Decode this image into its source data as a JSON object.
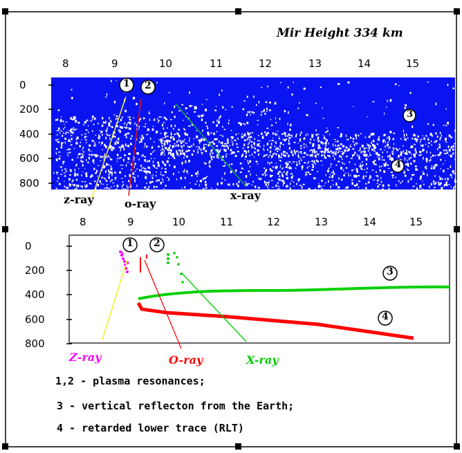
{
  "top_panel": {
    "title": "Mir Height  334 km",
    "x_ticks": [
      "8",
      "9",
      "10",
      "11",
      "12",
      "13",
      "14",
      "15"
    ],
    "y_ticks": [
      "0",
      "200",
      "400",
      "600",
      "800"
    ],
    "markers": [
      "1",
      "2",
      "3",
      "4"
    ],
    "ray_labels": {
      "z": "z-ray",
      "o": "o-ray",
      "x": "x-ray"
    },
    "colors": {
      "background": "#0a14f0",
      "z": "#f6f050",
      "o": "#e01010",
      "x": "#10b040"
    }
  },
  "bottom_panel": {
    "x_ticks": [
      "8",
      "9",
      "10",
      "11",
      "12",
      "13",
      "14",
      "15"
    ],
    "y_ticks": [
      "0",
      "200",
      "400",
      "600",
      "800"
    ],
    "markers": [
      "1",
      "2",
      "3",
      "4"
    ],
    "ray_labels": {
      "z": "Z-ray",
      "o": "O-ray",
      "x": "X-ray"
    },
    "colors": {
      "z": "#ff00ff",
      "o": "#ff0000",
      "x": "#00d000",
      "z_line": "#f0f000"
    }
  },
  "legend": {
    "line1": "1,2 - plasma resonances;",
    "line2": "3 - vertical reflecton from the Earth;",
    "line3": "4 - retarded lower trace (RLT)"
  }
}
